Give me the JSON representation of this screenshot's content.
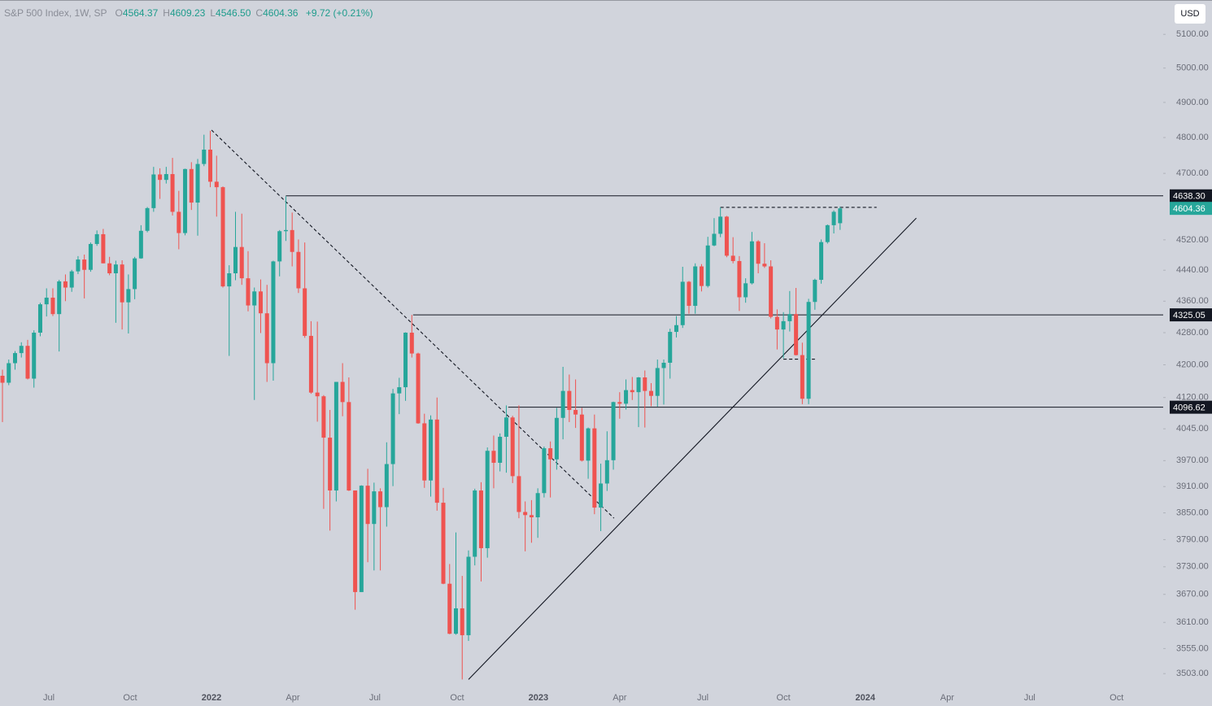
{
  "chart_data": {
    "type": "candlestick",
    "header": {
      "name": "S&P 500 Index, 1W, SP",
      "fields": [
        {
          "label": "O",
          "value": "4564.37"
        },
        {
          "label": "H",
          "value": "4609.23"
        },
        {
          "label": "L",
          "value": "4546.50"
        },
        {
          "label": "C",
          "value": "4604.36"
        }
      ],
      "change": "+9.72 (+0.21%)"
    },
    "currency": "USD",
    "log_scale": true,
    "grid": false,
    "up_color": "#26a69a",
    "down_color": "#ef5350",
    "ylim": [
      3437,
      5204
    ],
    "yticks": [
      {
        "value": 5100,
        "label": "5100.00"
      },
      {
        "value": 5000,
        "label": "5000.00"
      },
      {
        "value": 4900,
        "label": "4900.00"
      },
      {
        "value": 4800,
        "label": "4800.00"
      },
      {
        "value": 4700,
        "label": "4700.00"
      },
      {
        "value": 4520,
        "label": "4520.00"
      },
      {
        "value": 4440,
        "label": "4440.00"
      },
      {
        "value": 4360,
        "label": "4360.00"
      },
      {
        "value": 4280,
        "label": "4280.00"
      },
      {
        "value": 4200,
        "label": "4200.00"
      },
      {
        "value": 4120,
        "label": "4120.00"
      },
      {
        "value": 4045,
        "label": "4045.00"
      },
      {
        "value": 3970,
        "label": "3970.00"
      },
      {
        "value": 3910,
        "label": "3910.00"
      },
      {
        "value": 3850,
        "label": "3850.00"
      },
      {
        "value": 3790,
        "label": "3790.00"
      },
      {
        "value": 3730,
        "label": "3730.00"
      },
      {
        "value": 3670,
        "label": "3670.00"
      },
      {
        "value": 3610,
        "label": "3610.00"
      },
      {
        "value": 3555,
        "label": "3555.00"
      },
      {
        "value": 3503,
        "label": "3503.00"
      }
    ],
    "xlim": [
      -0.39,
      184.3
    ],
    "xticks": [
      {
        "value": 7.36,
        "label": "Jul"
      },
      {
        "value": 20.27,
        "label": "Oct"
      },
      {
        "value": 33.19,
        "label": "2022"
      },
      {
        "value": 46.1,
        "label": "Apr"
      },
      {
        "value": 59.14,
        "label": "Jul"
      },
      {
        "value": 72.19,
        "label": "Oct"
      },
      {
        "value": 85.1,
        "label": "2023"
      },
      {
        "value": 98.0,
        "label": "Apr"
      },
      {
        "value": 111.2,
        "label": "Jul"
      },
      {
        "value": 124.0,
        "label": "Oct"
      },
      {
        "value": 137.0,
        "label": "2024"
      },
      {
        "value": 150.0,
        "label": "Apr"
      },
      {
        "value": 163.1,
        "label": "Jul"
      },
      {
        "value": 176.9,
        "label": "Oct"
      }
    ],
    "open": [
      4173,
      4156,
      4204,
      4229,
      4247,
      4166,
      4280,
      4352,
      4369,
      4327,
      4411,
      4395,
      4437,
      4468,
      4441,
      4509,
      4535,
      4458,
      4432,
      4455,
      4357,
      4391,
      4471,
      4544,
      4605,
      4697,
      4682,
      4698,
      4595,
      4538,
      4712,
      4620,
      4726,
      4766,
      4677,
      4662,
      4398,
      4432,
      4501,
      4419,
      4349,
      4385,
      4329,
      4204,
      4463,
      4543,
      4546,
      4488,
      4393,
      4272,
      4132,
      4123,
      4024,
      3901,
      4158,
      4109,
      3901,
      3675,
      3912,
      3825,
      3899,
      3863,
      3962,
      4130,
      4145,
      4280,
      4228,
      4058,
      3924,
      4067,
      3873,
      3693,
      3586,
      3640,
      3583,
      3752,
      3901,
      3771,
      3993,
      3965,
      4026,
      4072,
      3934,
      3852,
      3845,
      3840,
      3895,
      3999,
      3973,
      4071,
      4136,
      4090,
      4079,
      3970,
      4046,
      3862,
      3917,
      3971,
      4109,
      4105,
      4138,
      4133,
      4169,
      4136,
      4124,
      4192,
      4205,
      4282,
      4299,
      4410,
      4348,
      4450,
      4399,
      4505,
      4536,
      4582,
      4478,
      4464,
      4370,
      4406,
      4516,
      4457,
      4450,
      4320,
      4288,
      4309,
      4327,
      4224,
      4117,
      4358,
      4415,
      4514,
      4559,
      4564.37
    ],
    "high": [
      4188,
      4213,
      4234,
      4256,
      4262,
      4286,
      4356,
      4393,
      4393,
      4415,
      4429,
      4441,
      4477,
      4481,
      4513,
      4545,
      4549,
      4475,
      4465,
      4466,
      4429,
      4475,
      4559,
      4608,
      4718,
      4714,
      4718,
      4743,
      4652,
      4713,
      4731,
      4740,
      4808,
      4819,
      4749,
      4664,
      4453,
      4595,
      4590,
      4490,
      4395,
      4416,
      4402,
      4465,
      4546,
      4637,
      4593,
      4521,
      4513,
      4309,
      4308,
      4126,
      4090,
      4158,
      4204,
      4169,
      3901,
      3913,
      3951,
      3919,
      3906,
      4013,
      4141,
      4168,
      4281,
      4325,
      4230,
      4081,
      4077,
      4120,
      3907,
      3736,
      3806,
      3710,
      3766,
      3905,
      3920,
      4001,
      4029,
      4034,
      4101,
      4076,
      4101,
      3876,
      3879,
      3906,
      4003,
      4015,
      4095,
      4195,
      4176,
      4164,
      4095,
      4048,
      4079,
      3963,
      4039,
      4110,
      4133,
      4164,
      4170,
      4170,
      4186,
      4155,
      4213,
      4213,
      4290,
      4322,
      4449,
      4412,
      4458,
      4456,
      4528,
      4578,
      4607,
      4584,
      4527,
      4477,
      4419,
      4541,
      4519,
      4511,
      4466,
      4339,
      4332,
      4386,
      4394,
      4255,
      4366,
      4418,
      4521,
      4561,
      4599,
      4609.23
    ],
    "low": [
      4061,
      4150,
      4188,
      4218,
      4164,
      4144,
      4271,
      4321,
      4322,
      4233,
      4360,
      4384,
      4430,
      4367,
      4436,
      4504,
      4458,
      4427,
      4305,
      4288,
      4278,
      4365,
      4470,
      4540,
      4595,
      4630,
      4672,
      4585,
      4495,
      4532,
      4600,
      4531,
      4720,
      4662,
      4582,
      4395,
      4222,
      4414,
      4402,
      4334,
      4114,
      4279,
      4158,
      4161,
      4424,
      4517,
      4450,
      4381,
      4267,
      4129,
      4062,
      3859,
      3810,
      3876,
      4075,
      3900,
      3637,
      3675,
      3740,
      3722,
      3722,
      3819,
      3911,
      4080,
      4112,
      4218,
      4057,
      3907,
      3887,
      3855,
      3692,
      3585,
      3584,
      3491,
      3571,
      3733,
      3698,
      3750,
      3906,
      3945,
      3942,
      3918,
      3838,
      3764,
      3783,
      3794,
      3885,
      3885,
      3949,
      4020,
      4061,
      4047,
      3968,
      3928,
      3847,
      3809,
      3900,
      3949,
      4069,
      4091,
      4114,
      4049,
      4048,
      4099,
      4098,
      4103,
      4166,
      4268,
      4292,
      4328,
      4328,
      4385,
      4395,
      4503,
      4527,
      4474,
      4458,
      4335,
      4356,
      4403,
      4432,
      4446,
      4316,
      4238,
      4216,
      4283,
      4223,
      4104,
      4104,
      4338,
      4405,
      4510,
      4537,
      4546.5
    ],
    "close": [
      4156,
      4204,
      4229,
      4247,
      4166,
      4280,
      4352,
      4369,
      4327,
      4411,
      4395,
      4437,
      4468,
      4441,
      4509,
      4535,
      4458,
      4432,
      4455,
      4357,
      4391,
      4471,
      4544,
      4605,
      4697,
      4682,
      4698,
      4595,
      4538,
      4712,
      4620,
      4726,
      4766,
      4677,
      4662,
      4398,
      4432,
      4501,
      4419,
      4349,
      4385,
      4329,
      4204,
      4463,
      4543,
      4546,
      4488,
      4393,
      4272,
      4132,
      4123,
      4024,
      3901,
      4158,
      4109,
      3901,
      3675,
      3912,
      3825,
      3899,
      3863,
      3962,
      4130,
      4145,
      4280,
      4228,
      4058,
      3924,
      4067,
      3873,
      3693,
      3586,
      3640,
      3583,
      3752,
      3901,
      3771,
      3993,
      3965,
      4026,
      4072,
      3934,
      3852,
      3845,
      3840,
      3895,
      3999,
      3973,
      4071,
      4136,
      4090,
      4079,
      3970,
      4046,
      3862,
      3917,
      3971,
      4109,
      4105,
      4138,
      4133,
      4169,
      4136,
      4124,
      4192,
      4205,
      4282,
      4299,
      4410,
      4348,
      4450,
      4399,
      4505,
      4536,
      4582,
      4478,
      4464,
      4370,
      4406,
      4516,
      4457,
      4450,
      4320,
      4288,
      4309,
      4327,
      4224,
      4117,
      4358,
      4415,
      4514,
      4559,
      4595,
      4604.36
    ],
    "levels": [
      {
        "value": 4638.3,
        "label": "4638.30",
        "from": 45
      },
      {
        "value": 4325.05,
        "label": "4325.05",
        "from": 65.2
      },
      {
        "value": 4096.62,
        "label": "4096.62",
        "from": 80.3
      }
    ],
    "last_price": {
      "value": 4604.36,
      "label": "4604.36"
    },
    "trendlines": [
      {
        "style": "dashed",
        "x": [
          33.2,
          97.1
        ],
        "y": [
          4821,
          3838
        ]
      },
      {
        "style": "solid",
        "x": [
          74,
          145.1
        ],
        "y": [
          3491,
          4578
        ]
      },
      {
        "style": "dashed",
        "x": [
          114,
          138.8
        ],
        "y": [
          4607,
          4607
        ]
      },
      {
        "style": "dashed",
        "x": [
          124,
          129
        ],
        "y": [
          4214,
          4214
        ]
      }
    ]
  }
}
